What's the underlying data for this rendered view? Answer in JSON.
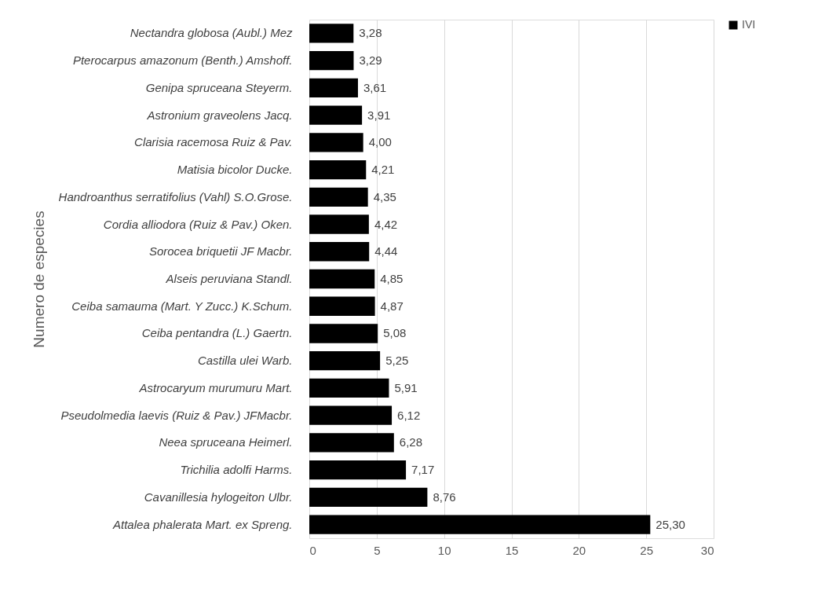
{
  "chart_data": {
    "type": "bar",
    "orientation": "horizontal",
    "ylabel": "Numero de especies",
    "categories": [
      "Nectandra globosa (Aubl.) Mez",
      "Pterocarpus amazonum (Benth.) Amshoff.",
      "Genipa spruceana Steyerm.",
      "Astronium graveolens Jacq.",
      "Clarisia racemosa Ruiz & Pav.",
      "Matisia bicolor Ducke.",
      "Handroanthus serratifolius (Vahl) S.O.Grose.",
      "Cordia alliodora (Ruiz & Pav.) Oken.",
      "Sorocea briquetii JF Macbr.",
      "Alseis peruviana Standl.",
      "Ceiba samauma (Mart. Y Zucc.) K.Schum.",
      "Ceiba pentandra (L.) Gaertn.",
      "Castilla ulei  Warb.",
      "Astrocaryum murumuru Mart.",
      "Pseudolmedia laevis (Ruiz & Pav.) JFMacbr.",
      "Neea spruceana Heimerl.",
      "Trichilia adolfi Harms.",
      "Cavanillesia hylogeiton Ulbr.",
      "Attalea phalerata Mart. ex Spreng."
    ],
    "series": [
      {
        "name": "IVI",
        "color": "#000000",
        "values": [
          3.28,
          3.29,
          3.61,
          3.91,
          4.0,
          4.21,
          4.35,
          4.42,
          4.44,
          4.85,
          4.87,
          5.08,
          5.25,
          5.91,
          6.12,
          6.28,
          7.17,
          8.76,
          25.3
        ],
        "value_labels": [
          "3,28",
          "3,29",
          "3,61",
          "3,91",
          "4,00",
          "4,21",
          "4,35",
          "4,42",
          "4,44",
          "4,85",
          "4,87",
          "5,08",
          "5,25",
          "5,91",
          "6,12",
          "6,28",
          "7,17",
          "8,76",
          "25,30"
        ]
      }
    ],
    "xlim": [
      0,
      30
    ],
    "xticks": [
      0,
      5,
      10,
      15,
      20,
      25,
      30
    ],
    "grid": "x",
    "legend": "right"
  }
}
